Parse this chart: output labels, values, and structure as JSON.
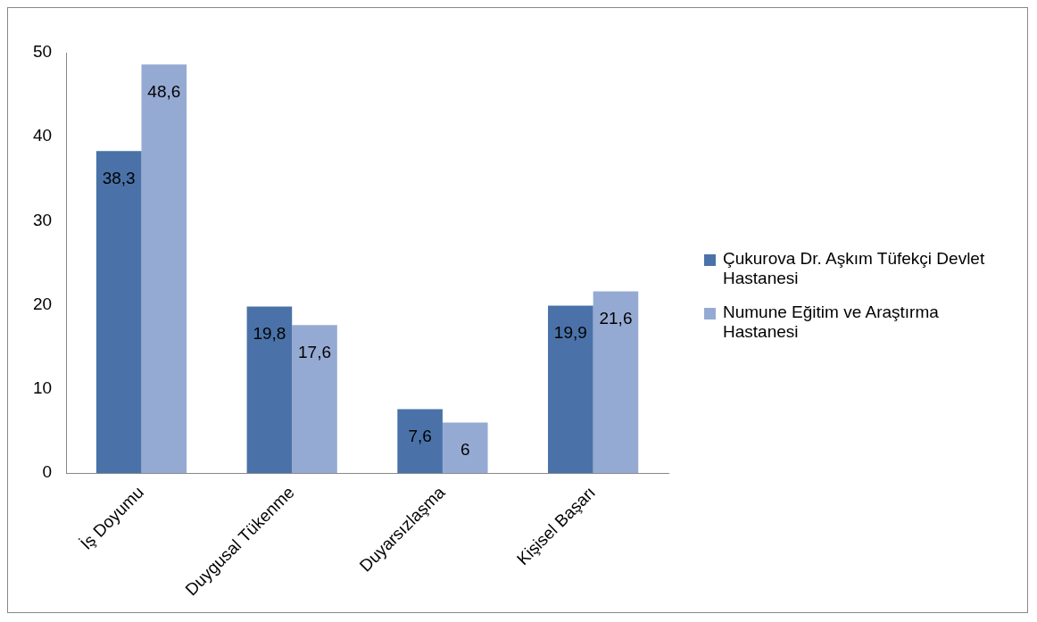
{
  "chart_data": {
    "type": "bar",
    "categories": [
      "İş Doyumu",
      "Duygusal Tükenme",
      "Duyarsızlaşma",
      "Kişisel Başarı"
    ],
    "series": [
      {
        "name": "Çukurova Dr. Aşkım Tüfekçi Devlet Hastanesi",
        "color": "#4a72a8",
        "values": [
          38.3,
          19.8,
          7.6,
          19.9
        ],
        "value_labels": [
          "38,3",
          "19,8",
          "7,6",
          "19,9"
        ]
      },
      {
        "name": "Numune Eğitim ve Araştırma Hastanesi",
        "color": "#95aad3",
        "values": [
          48.6,
          17.6,
          6,
          21.6
        ],
        "value_labels": [
          "48,6",
          "17,6",
          "6",
          "21,6"
        ]
      }
    ],
    "ylim": [
      0,
      50
    ],
    "yticks": [
      0,
      10,
      20,
      30,
      40,
      50
    ],
    "grid": false,
    "legend": "right"
  }
}
